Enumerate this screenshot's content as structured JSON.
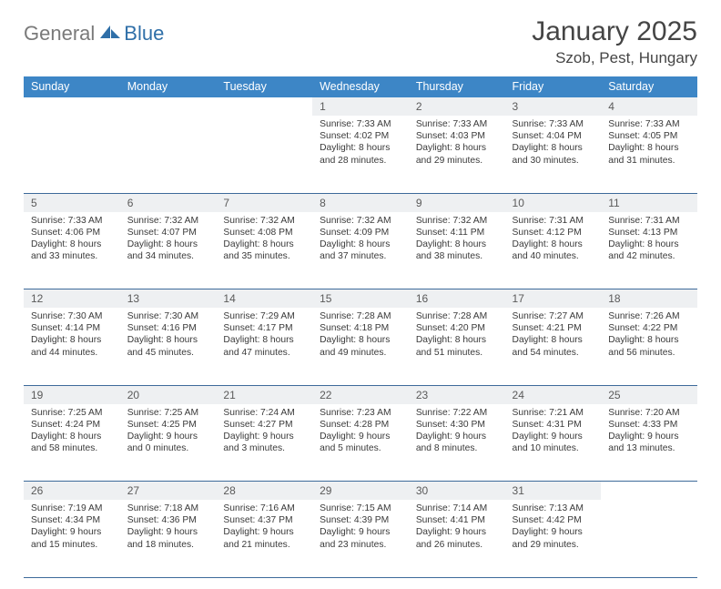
{
  "logo": {
    "general": "General",
    "blue": "Blue"
  },
  "title": "January 2025",
  "location": "Szob, Pest, Hungary",
  "header_bg": "#3d86c6",
  "dow": [
    "Sunday",
    "Monday",
    "Tuesday",
    "Wednesday",
    "Thursday",
    "Friday",
    "Saturday"
  ],
  "weeks": [
    {
      "days": [
        {
          "num": "",
          "sunrise": "",
          "sunset": "",
          "daylight": ""
        },
        {
          "num": "",
          "sunrise": "",
          "sunset": "",
          "daylight": ""
        },
        {
          "num": "",
          "sunrise": "",
          "sunset": "",
          "daylight": ""
        },
        {
          "num": "1",
          "sunrise": "Sunrise: 7:33 AM",
          "sunset": "Sunset: 4:02 PM",
          "daylight": "Daylight: 8 hours and 28 minutes."
        },
        {
          "num": "2",
          "sunrise": "Sunrise: 7:33 AM",
          "sunset": "Sunset: 4:03 PM",
          "daylight": "Daylight: 8 hours and 29 minutes."
        },
        {
          "num": "3",
          "sunrise": "Sunrise: 7:33 AM",
          "sunset": "Sunset: 4:04 PM",
          "daylight": "Daylight: 8 hours and 30 minutes."
        },
        {
          "num": "4",
          "sunrise": "Sunrise: 7:33 AM",
          "sunset": "Sunset: 4:05 PM",
          "daylight": "Daylight: 8 hours and 31 minutes."
        }
      ]
    },
    {
      "days": [
        {
          "num": "5",
          "sunrise": "Sunrise: 7:33 AM",
          "sunset": "Sunset: 4:06 PM",
          "daylight": "Daylight: 8 hours and 33 minutes."
        },
        {
          "num": "6",
          "sunrise": "Sunrise: 7:32 AM",
          "sunset": "Sunset: 4:07 PM",
          "daylight": "Daylight: 8 hours and 34 minutes."
        },
        {
          "num": "7",
          "sunrise": "Sunrise: 7:32 AM",
          "sunset": "Sunset: 4:08 PM",
          "daylight": "Daylight: 8 hours and 35 minutes."
        },
        {
          "num": "8",
          "sunrise": "Sunrise: 7:32 AM",
          "sunset": "Sunset: 4:09 PM",
          "daylight": "Daylight: 8 hours and 37 minutes."
        },
        {
          "num": "9",
          "sunrise": "Sunrise: 7:32 AM",
          "sunset": "Sunset: 4:11 PM",
          "daylight": "Daylight: 8 hours and 38 minutes."
        },
        {
          "num": "10",
          "sunrise": "Sunrise: 7:31 AM",
          "sunset": "Sunset: 4:12 PM",
          "daylight": "Daylight: 8 hours and 40 minutes."
        },
        {
          "num": "11",
          "sunrise": "Sunrise: 7:31 AM",
          "sunset": "Sunset: 4:13 PM",
          "daylight": "Daylight: 8 hours and 42 minutes."
        }
      ]
    },
    {
      "days": [
        {
          "num": "12",
          "sunrise": "Sunrise: 7:30 AM",
          "sunset": "Sunset: 4:14 PM",
          "daylight": "Daylight: 8 hours and 44 minutes."
        },
        {
          "num": "13",
          "sunrise": "Sunrise: 7:30 AM",
          "sunset": "Sunset: 4:16 PM",
          "daylight": "Daylight: 8 hours and 45 minutes."
        },
        {
          "num": "14",
          "sunrise": "Sunrise: 7:29 AM",
          "sunset": "Sunset: 4:17 PM",
          "daylight": "Daylight: 8 hours and 47 minutes."
        },
        {
          "num": "15",
          "sunrise": "Sunrise: 7:28 AM",
          "sunset": "Sunset: 4:18 PM",
          "daylight": "Daylight: 8 hours and 49 minutes."
        },
        {
          "num": "16",
          "sunrise": "Sunrise: 7:28 AM",
          "sunset": "Sunset: 4:20 PM",
          "daylight": "Daylight: 8 hours and 51 minutes."
        },
        {
          "num": "17",
          "sunrise": "Sunrise: 7:27 AM",
          "sunset": "Sunset: 4:21 PM",
          "daylight": "Daylight: 8 hours and 54 minutes."
        },
        {
          "num": "18",
          "sunrise": "Sunrise: 7:26 AM",
          "sunset": "Sunset: 4:22 PM",
          "daylight": "Daylight: 8 hours and 56 minutes."
        }
      ]
    },
    {
      "days": [
        {
          "num": "19",
          "sunrise": "Sunrise: 7:25 AM",
          "sunset": "Sunset: 4:24 PM",
          "daylight": "Daylight: 8 hours and 58 minutes."
        },
        {
          "num": "20",
          "sunrise": "Sunrise: 7:25 AM",
          "sunset": "Sunset: 4:25 PM",
          "daylight": "Daylight: 9 hours and 0 minutes."
        },
        {
          "num": "21",
          "sunrise": "Sunrise: 7:24 AM",
          "sunset": "Sunset: 4:27 PM",
          "daylight": "Daylight: 9 hours and 3 minutes."
        },
        {
          "num": "22",
          "sunrise": "Sunrise: 7:23 AM",
          "sunset": "Sunset: 4:28 PM",
          "daylight": "Daylight: 9 hours and 5 minutes."
        },
        {
          "num": "23",
          "sunrise": "Sunrise: 7:22 AM",
          "sunset": "Sunset: 4:30 PM",
          "daylight": "Daylight: 9 hours and 8 minutes."
        },
        {
          "num": "24",
          "sunrise": "Sunrise: 7:21 AM",
          "sunset": "Sunset: 4:31 PM",
          "daylight": "Daylight: 9 hours and 10 minutes."
        },
        {
          "num": "25",
          "sunrise": "Sunrise: 7:20 AM",
          "sunset": "Sunset: 4:33 PM",
          "daylight": "Daylight: 9 hours and 13 minutes."
        }
      ]
    },
    {
      "days": [
        {
          "num": "26",
          "sunrise": "Sunrise: 7:19 AM",
          "sunset": "Sunset: 4:34 PM",
          "daylight": "Daylight: 9 hours and 15 minutes."
        },
        {
          "num": "27",
          "sunrise": "Sunrise: 7:18 AM",
          "sunset": "Sunset: 4:36 PM",
          "daylight": "Daylight: 9 hours and 18 minutes."
        },
        {
          "num": "28",
          "sunrise": "Sunrise: 7:16 AM",
          "sunset": "Sunset: 4:37 PM",
          "daylight": "Daylight: 9 hours and 21 minutes."
        },
        {
          "num": "29",
          "sunrise": "Sunrise: 7:15 AM",
          "sunset": "Sunset: 4:39 PM",
          "daylight": "Daylight: 9 hours and 23 minutes."
        },
        {
          "num": "30",
          "sunrise": "Sunrise: 7:14 AM",
          "sunset": "Sunset: 4:41 PM",
          "daylight": "Daylight: 9 hours and 26 minutes."
        },
        {
          "num": "31",
          "sunrise": "Sunrise: 7:13 AM",
          "sunset": "Sunset: 4:42 PM",
          "daylight": "Daylight: 9 hours and 29 minutes."
        },
        {
          "num": "",
          "sunrise": "",
          "sunset": "",
          "daylight": ""
        }
      ]
    }
  ]
}
